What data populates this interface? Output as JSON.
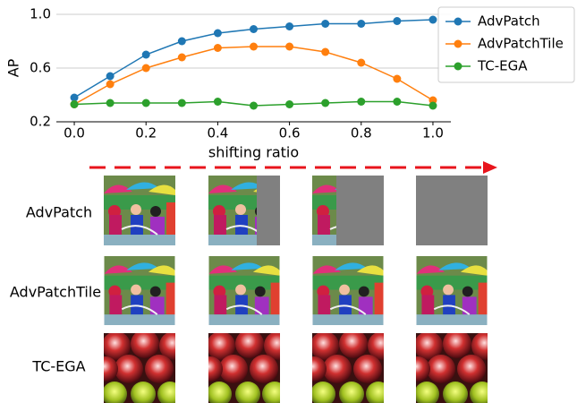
{
  "chart_data": {
    "type": "line",
    "x_label": "shifting ratio",
    "y_label": "AP",
    "x": [
      0.0,
      0.1,
      0.2,
      0.3,
      0.4,
      0.5,
      0.6,
      0.7,
      0.8,
      0.9,
      1.0
    ],
    "series": [
      {
        "name": "AdvPatch",
        "color": "#1f77b4",
        "values": [
          0.38,
          0.54,
          0.7,
          0.8,
          0.86,
          0.89,
          0.91,
          0.93,
          0.93,
          0.95,
          0.96
        ]
      },
      {
        "name": "AdvPatchTile",
        "color": "#ff7f0e",
        "values": [
          0.33,
          0.48,
          0.6,
          0.68,
          0.75,
          0.76,
          0.76,
          0.72,
          0.64,
          0.52,
          0.36
        ]
      },
      {
        "name": "TC-EGA",
        "color": "#2ca02c",
        "values": [
          0.33,
          0.34,
          0.34,
          0.34,
          0.35,
          0.32,
          0.33,
          0.34,
          0.35,
          0.35,
          0.32
        ]
      }
    ],
    "xlim": [
      -0.05,
      1.05
    ],
    "xticks": [
      {
        "value": 0,
        "label": "0.0"
      },
      0.2,
      0.4,
      0.6,
      0.8,
      {
        "value": 1,
        "label": "1.0"
      }
    ],
    "ylim": [
      0.2,
      1.0
    ],
    "yticks": [
      0.2,
      0.6,
      {
        "value": 1,
        "label": "1.0"
      }
    ],
    "grid": true,
    "legend": "upper right"
  },
  "image_grid": {
    "rows": [
      "AdvPatch",
      "AdvPatchTile",
      "TC-EGA"
    ]
  }
}
